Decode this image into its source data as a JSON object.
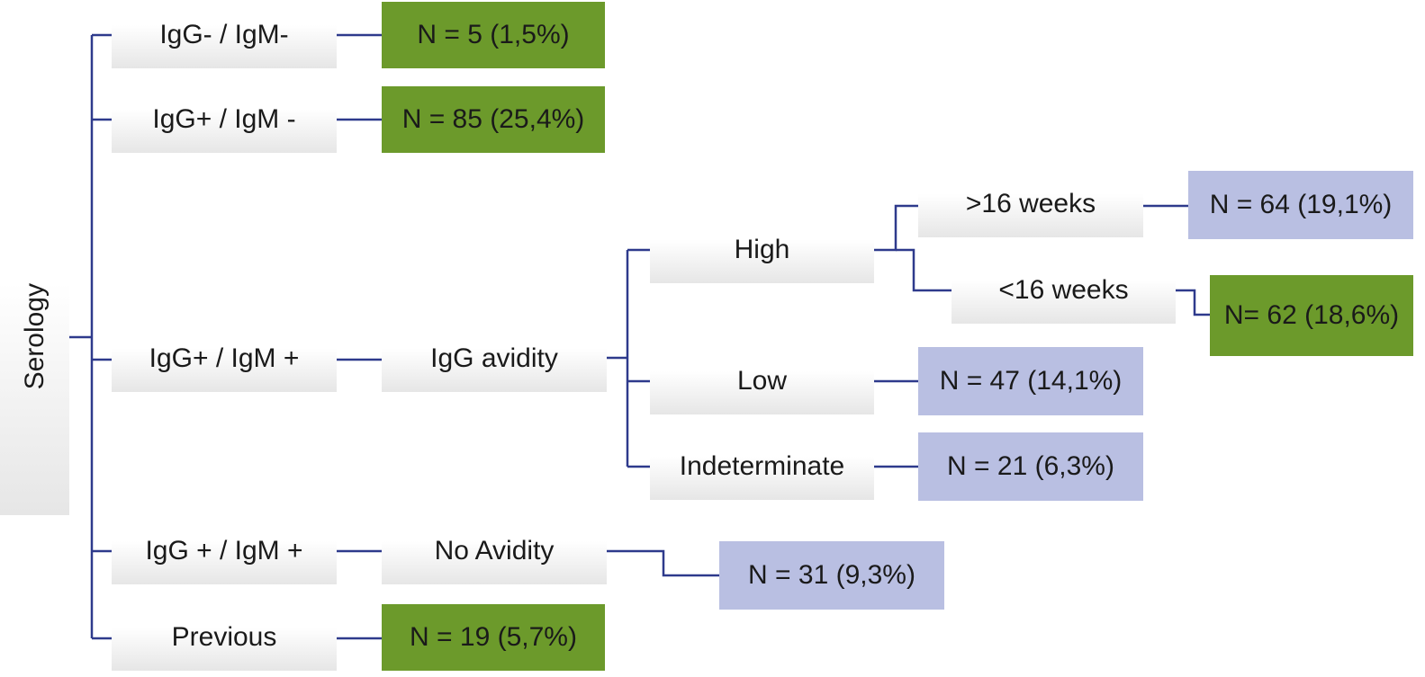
{
  "root": {
    "label": "Serology"
  },
  "level1": [
    {
      "id": "igg-neg-igm-neg",
      "label": "IgG- / IgM-"
    },
    {
      "id": "igg-pos-igm-neg",
      "label": "IgG+ / IgM -"
    },
    {
      "id": "igg-pos-igm-pos",
      "label": "IgG+ / IgM +"
    },
    {
      "id": "igg-pos-igm-pos-2",
      "label": "IgG + / IgM +"
    },
    {
      "id": "previous",
      "label": "Previous"
    }
  ],
  "level2": {
    "igg_avidity": "IgG avidity",
    "no_avidity": "No Avidity"
  },
  "avidity": {
    "high": "High",
    "low": "Low",
    "indeterminate": "Indeterminate"
  },
  "weeks": {
    "over16": ">16 weeks",
    "under16": "<16 weeks"
  },
  "results": {
    "igg_neg_igm_neg": "N = 5 (1,5%)",
    "igg_pos_igm_neg": "N = 85 (25,4%)",
    "over16": "N = 64 (19,1%)",
    "under16": "N= 62 (18,6%)",
    "low": "N = 47 (14,1%)",
    "indeterminate": "N = 21 (6,3%)",
    "no_avidity": "N = 31 (9,3%)",
    "previous": "N = 19 (5,7%)"
  },
  "colors": {
    "connector": "#2e3a8c",
    "green_result": "#6c9a2b",
    "blue_result": "#b9bfe2",
    "grey_node": "#e6e6e6"
  }
}
